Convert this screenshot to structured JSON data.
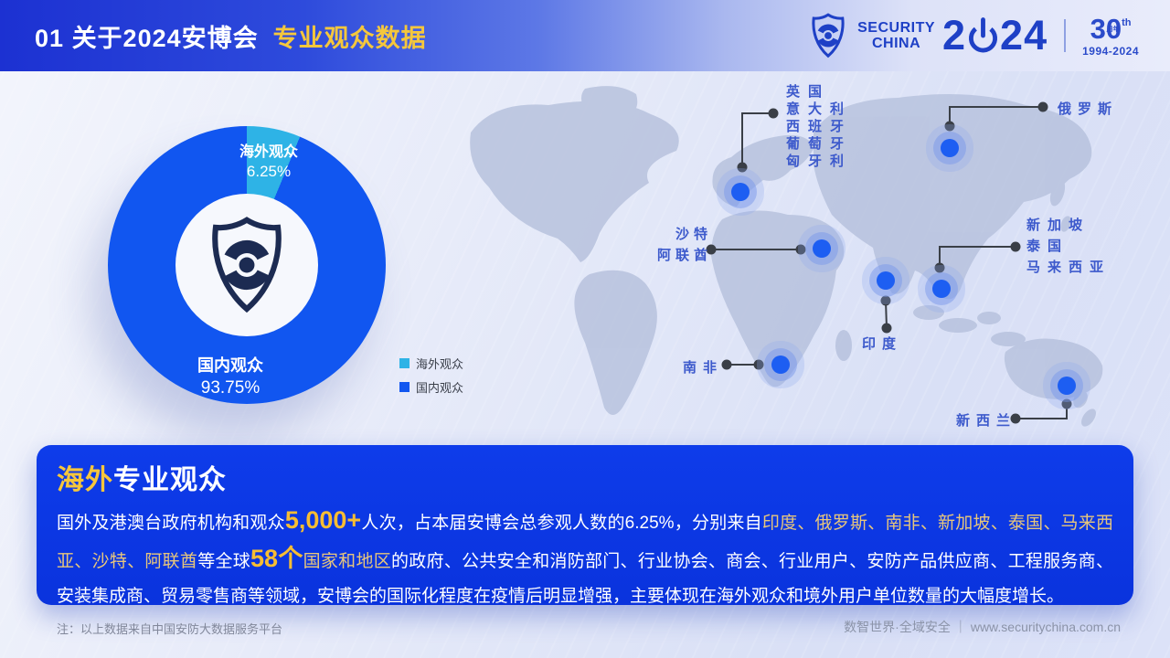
{
  "colors": {
    "overseas_cyan": "#2eb3e6",
    "domestic_blue": "#1156f0",
    "accent_gold": "#f5c73c",
    "info_box_blue": "#0c36e0",
    "map_label_blue": "#3d5acc",
    "brand_blue": "#1e40c6"
  },
  "header": {
    "slide_number": "01",
    "title": "关于2024安博会",
    "subtitle": "专业观众数据",
    "brand_line1": "SECURITY",
    "brand_line2": "CHINA",
    "year_left": "2",
    "year_right": "24",
    "anniv_number": "30",
    "anniv_inner": "周年",
    "anniv_sup": "th",
    "anniv_years": "1994-2024"
  },
  "chart_data": {
    "type": "pie",
    "donut": true,
    "categories": [
      "海外观众",
      "国内观众"
    ],
    "values": [
      6.25,
      93.75
    ],
    "value_labels": [
      "6.25%",
      "93.75%"
    ],
    "colors": [
      "#2eb3e6",
      "#1156f0"
    ],
    "legend_position": "right-of-chart-bottom",
    "start_angle_deg": 0,
    "note": "cyan overseas slice starts at 12 o'clock, clockwise"
  },
  "legend": {
    "items": [
      {
        "label": "海外观众",
        "color": "#2eb3e6"
      },
      {
        "label": "国内观众",
        "color": "#1156f0"
      }
    ]
  },
  "map": {
    "labels": {
      "europe": [
        "英国",
        "意大利",
        "西班牙",
        "葡萄牙",
        "匈牙利"
      ],
      "russia": "俄罗斯",
      "saudi": [
        "沙特",
        "阿联酋"
      ],
      "india": "印度",
      "seasia": [
        "新加坡",
        "泰国",
        "马来西亚"
      ],
      "south_africa": "南非",
      "new_zealand": "新西兰"
    }
  },
  "info_box": {
    "title_highlight": "海外",
    "title_rest": "专业观众",
    "body_segments": [
      {
        "style": "n",
        "text": "国外及港澳台政府机构和观众"
      },
      {
        "style": "bg",
        "text": "5,000+"
      },
      {
        "style": "n",
        "text": "人次，占本届安博会总参观人数的6.25%，分别来自"
      },
      {
        "style": "g",
        "text": "印度、俄罗斯、南非、新加坡、泰国、马来西亚、沙特、阿联酋"
      },
      {
        "style": "n",
        "text": "等全球"
      },
      {
        "style": "bg",
        "text": "58个"
      },
      {
        "style": "g",
        "text": "国家和地区"
      },
      {
        "style": "n",
        "text": "的政府、公共安全和消防部门、行业协会、商会、行业用户、安防产品供应商、工程服务商、安装集成商、贸易零售商等领域，安博会的国际化程度在疫情后明显增强，主要体现在海外观众和境外用户单位数量的大幅度增长。"
      }
    ]
  },
  "footer": {
    "note": "注：以上数据来自中国安防大数据服务平台",
    "slogan": "数智世界·全域安全",
    "separator": "｜",
    "url": "www.securitychina.com.cn"
  }
}
